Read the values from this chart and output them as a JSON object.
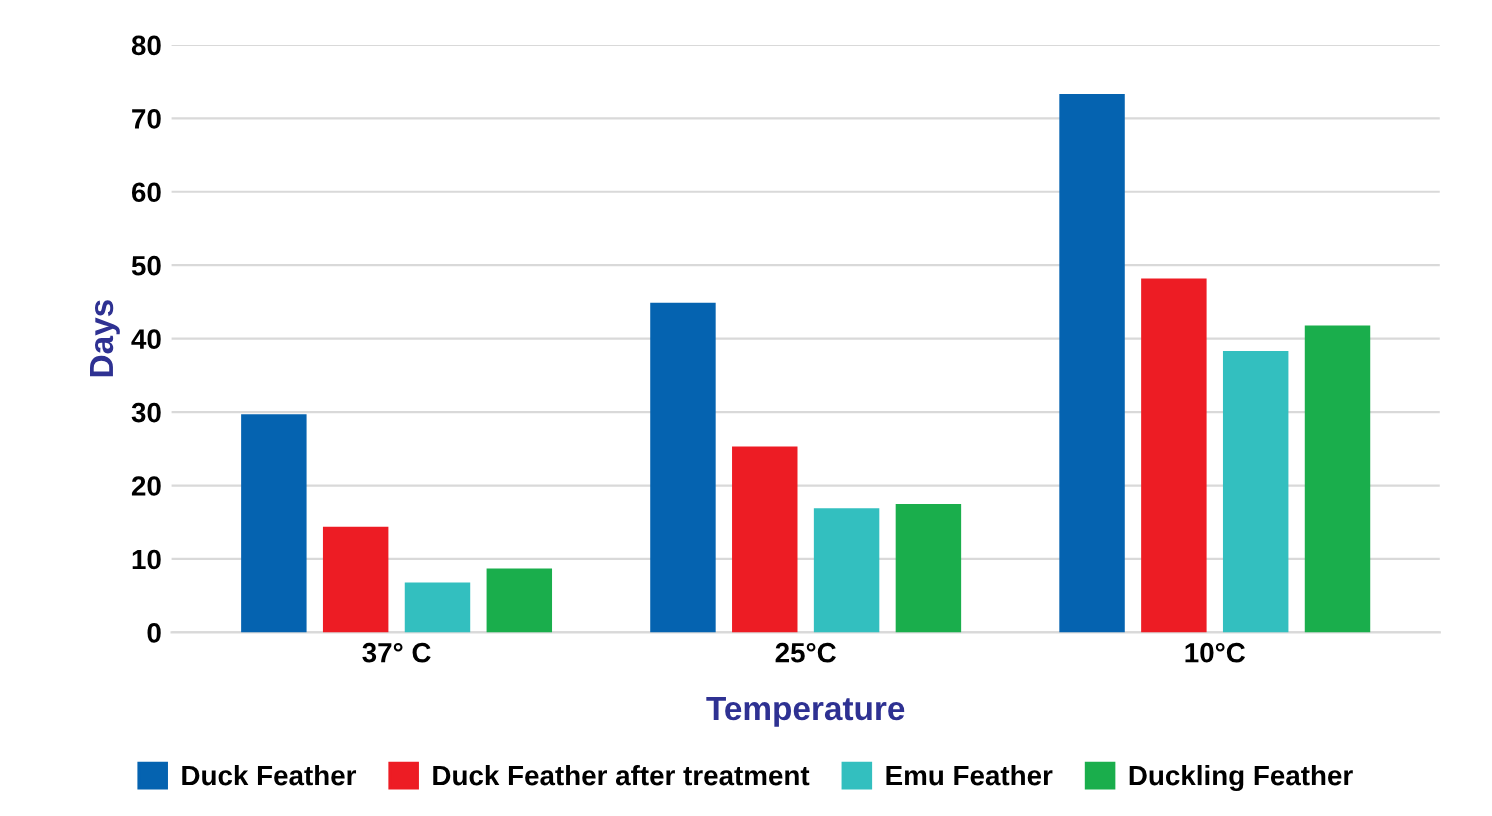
{
  "chart_data": {
    "type": "bar",
    "xlabel": "Temperature",
    "ylabel": "Days",
    "categories": [
      "37° C",
      "25°C",
      "10°C"
    ],
    "series": [
      {
        "name": "Duck Feather",
        "color": "#0563b0",
        "values": [
          29.7,
          44.9,
          73.3
        ]
      },
      {
        "name": "Duck Feather after treatment",
        "color": "#ed1c24",
        "values": [
          14.4,
          25.3,
          48.2
        ]
      },
      {
        "name": "Emu Feather",
        "color": "#33bfbf",
        "values": [
          6.8,
          16.9,
          38.3
        ]
      },
      {
        "name": "Duckling Feather",
        "color": "#1aae4c",
        "values": [
          8.7,
          17.5,
          41.8
        ]
      }
    ],
    "ylim": [
      0,
      80
    ],
    "yticks": [
      0,
      10,
      20,
      30,
      40,
      50,
      60,
      70,
      80
    ],
    "grid": "y",
    "legend": "bottom"
  }
}
